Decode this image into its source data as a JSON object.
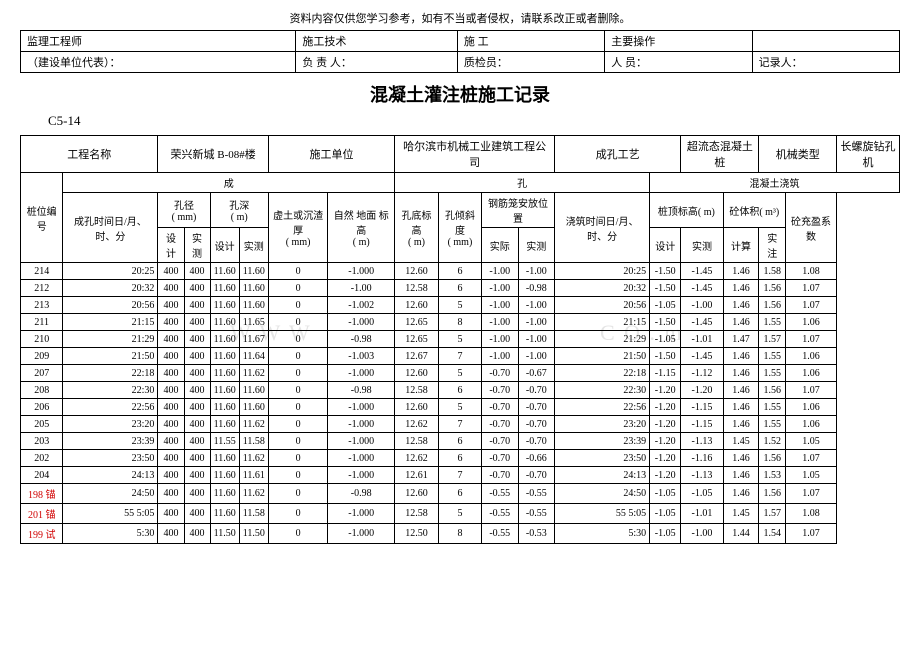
{
  "topnote": "资料内容仅供您学习参考，如有不当或者侵权，请联系改正或者删除。",
  "header_labels": {
    "r1c1": "监理工程师",
    "r1c2": "施工技术",
    "r1c3": "施  工",
    "r1c4": "主要操作",
    "r1c5": "",
    "r2c1": "（建设单位代表）：",
    "r2c2": "负 责 人：",
    "r2c3": "质检员：",
    "r2c4": "人   员：",
    "r2c5": "记录人："
  },
  "title": "混凝土灌注桩施工记录",
  "section": "C5-14",
  "info": {
    "col1_label": "工程名称",
    "col1_val": "荣兴新城 B-08#楼",
    "col2_label": "施工单位",
    "col2_val": "哈尔滨市机械工业建筑工程公司",
    "col3_label": "成孔工艺",
    "col3_val": "超流态混凝土桩",
    "col4_label": "机械类型",
    "col4_val": "长螺旋钻孔机"
  },
  "grp": {
    "left": "成",
    "mid": "孔",
    "right": "混凝土浇筑"
  },
  "h": {
    "pileno": "桩位编号",
    "time1": "成孔时间日/月、时、分",
    "diam": "孔径",
    "depth": "孔深",
    "unit_mm": "( mm)",
    "unit_m": "( m)",
    "settle": "虚土或沉渣厚",
    "nat": "自然 地面 标 高",
    "bottom": "孔底标高",
    "tilt": "孔倾斜度",
    "cage": "钢筋笼安放位置",
    "cage_a": "实际",
    "cage_b": "实测",
    "time2": "浇筑时间日/月、时、分",
    "top": "桩顶标高( m)",
    "vol": "砼体积( m³)",
    "coef": "砼充盈系数",
    "des": "设计",
    "mea": "实测",
    "calc": "计算",
    "act": "实注"
  },
  "rows": [
    {
      "no": "214",
      "t1": "20:25",
      "d1": "400",
      "d2": "400",
      "h1": "11.60",
      "h2": "11.60",
      "s": "0",
      "n": "-1.000",
      "b": "12.60",
      "ti": "6",
      "ca": "-1.00",
      "cb": "-1.00",
      "t2": "20:25",
      "top1": "-1.50",
      "top2": "-1.45",
      "v1": "1.46",
      "v2": "1.58",
      "c": "1.08"
    },
    {
      "no": "212",
      "t1": "20:32",
      "d1": "400",
      "d2": "400",
      "h1": "11.60",
      "h2": "11.60",
      "s": "0",
      "n": "-1.00",
      "b": "12.58",
      "ti": "6",
      "ca": "-1.00",
      "cb": "-0.98",
      "t2": "20:32",
      "top1": "-1.50",
      "top2": "-1.45",
      "v1": "1.46",
      "v2": "1.56",
      "c": "1.07"
    },
    {
      "no": "213",
      "t1": "20:56",
      "d1": "400",
      "d2": "400",
      "h1": "11.60",
      "h2": "11.60",
      "s": "0",
      "n": "-1.002",
      "b": "12.60",
      "ti": "5",
      "ca": "-1.00",
      "cb": "-1.00",
      "t2": "20:56",
      "top1": "-1.05",
      "top2": "-1.00",
      "v1": "1.46",
      "v2": "1.56",
      "c": "1.07"
    },
    {
      "no": "211",
      "t1": "21:15",
      "d1": "400",
      "d2": "400",
      "h1": "11.60",
      "h2": "11.65",
      "s": "0",
      "n": "-1.000",
      "b": "12.65",
      "ti": "8",
      "ca": "-1.00",
      "cb": "-1.00",
      "t2": "21:15",
      "top1": "-1.50",
      "top2": "-1.45",
      "v1": "1.46",
      "v2": "1.55",
      "c": "1.06"
    },
    {
      "no": "210",
      "t1": "21:29",
      "d1": "400",
      "d2": "400",
      "h1": "11.60",
      "h2": "11.67",
      "s": "0",
      "n": "-0.98",
      "b": "12.65",
      "ti": "5",
      "ca": "-1.00",
      "cb": "-1.00",
      "t2": "21:29",
      "top1": "-1.05",
      "top2": "-1.01",
      "v1": "1.47",
      "v2": "1.57",
      "c": "1.07"
    },
    {
      "no": "209",
      "t1": "21:50",
      "d1": "400",
      "d2": "400",
      "h1": "11.60",
      "h2": "11.64",
      "s": "0",
      "n": "-1.003",
      "b": "12.67",
      "ti": "7",
      "ca": "-1.00",
      "cb": "-1.00",
      "t2": "21:50",
      "top1": "-1.50",
      "top2": "-1.45",
      "v1": "1.46",
      "v2": "1.55",
      "c": "1.06"
    },
    {
      "no": "207",
      "t1": "22:18",
      "d1": "400",
      "d2": "400",
      "h1": "11.60",
      "h2": "11.62",
      "s": "0",
      "n": "-1.000",
      "b": "12.60",
      "ti": "5",
      "ca": "-0.70",
      "cb": "-0.67",
      "t2": "22:18",
      "top1": "-1.15",
      "top2": "-1.12",
      "v1": "1.46",
      "v2": "1.55",
      "c": "1.06"
    },
    {
      "no": "208",
      "t1": "22:30",
      "d1": "400",
      "d2": "400",
      "h1": "11.60",
      "h2": "11.60",
      "s": "0",
      "n": "-0.98",
      "b": "12.58",
      "ti": "6",
      "ca": "-0.70",
      "cb": "-0.70",
      "t2": "22:30",
      "top1": "-1.20",
      "top2": "-1.20",
      "v1": "1.46",
      "v2": "1.56",
      "c": "1.07"
    },
    {
      "no": "206",
      "t1": "22:56",
      "d1": "400",
      "d2": "400",
      "h1": "11.60",
      "h2": "11.60",
      "s": "0",
      "n": "-1.000",
      "b": "12.60",
      "ti": "5",
      "ca": "-0.70",
      "cb": "-0.70",
      "t2": "22:56",
      "top1": "-1.20",
      "top2": "-1.15",
      "v1": "1.46",
      "v2": "1.55",
      "c": "1.06"
    },
    {
      "no": "205",
      "t1": "23:20",
      "d1": "400",
      "d2": "400",
      "h1": "11.60",
      "h2": "11.62",
      "s": "0",
      "n": "-1.000",
      "b": "12.62",
      "ti": "7",
      "ca": "-0.70",
      "cb": "-0.70",
      "t2": "23:20",
      "top1": "-1.20",
      "top2": "-1.15",
      "v1": "1.46",
      "v2": "1.55",
      "c": "1.06"
    },
    {
      "no": "203",
      "t1": "23:39",
      "d1": "400",
      "d2": "400",
      "h1": "11.55",
      "h2": "11.58",
      "s": "0",
      "n": "-1.000",
      "b": "12.58",
      "ti": "6",
      "ca": "-0.70",
      "cb": "-0.70",
      "t2": "23:39",
      "top1": "-1.20",
      "top2": "-1.13",
      "v1": "1.45",
      "v2": "1.52",
      "c": "1.05"
    },
    {
      "no": "202",
      "t1": "23:50",
      "d1": "400",
      "d2": "400",
      "h1": "11.60",
      "h2": "11.62",
      "s": "0",
      "n": "-1.000",
      "b": "12.62",
      "ti": "6",
      "ca": "-0.70",
      "cb": "-0.66",
      "t2": "23:50",
      "top1": "-1.20",
      "top2": "-1.16",
      "v1": "1.46",
      "v2": "1.56",
      "c": "1.07"
    },
    {
      "no": "204",
      "t1": "24:13",
      "d1": "400",
      "d2": "400",
      "h1": "11.60",
      "h2": "11.61",
      "s": "0",
      "n": "-1.000",
      "b": "12.61",
      "ti": "7",
      "ca": "-0.70",
      "cb": "-0.70",
      "t2": "24:13",
      "top1": "-1.20",
      "top2": "-1.13",
      "v1": "1.46",
      "v2": "1.53",
      "c": "1.05"
    },
    {
      "no": "198 锚",
      "red": true,
      "t1": "24:50",
      "d1": "400",
      "d2": "400",
      "h1": "11.60",
      "h2": "11.62",
      "s": "0",
      "n": "-0.98",
      "b": "12.60",
      "ti": "6",
      "ca": "-0.55",
      "cb": "-0.55",
      "t2": "24:50",
      "top1": "-1.05",
      "top2": "-1.05",
      "v1": "1.46",
      "v2": "1.56",
      "c": "1.07"
    },
    {
      "no": "201 锚",
      "red": true,
      "t1": "55   5:05",
      "d1": "400",
      "d2": "400",
      "h1": "11.60",
      "h2": "11.58",
      "s": "0",
      "n": "-1.000",
      "b": "12.58",
      "ti": "5",
      "ca": "-0.55",
      "cb": "-0.55",
      "t2": "55   5:05",
      "top1": "-1.05",
      "top2": "-1.01",
      "v1": "1.45",
      "v2": "1.57",
      "c": "1.08"
    },
    {
      "no": "199 试",
      "red": true,
      "t1": "5:30",
      "d1": "400",
      "d2": "400",
      "h1": "11.50",
      "h2": "11.50",
      "s": "0",
      "n": "-1.000",
      "b": "12.50",
      "ti": "8",
      "ca": "-0.55",
      "cb": "-0.53",
      "t2": "5:30",
      "top1": "-1.05",
      "top2": "-1.00",
      "v1": "1.44",
      "v2": "1.54",
      "c": "1.07"
    }
  ]
}
